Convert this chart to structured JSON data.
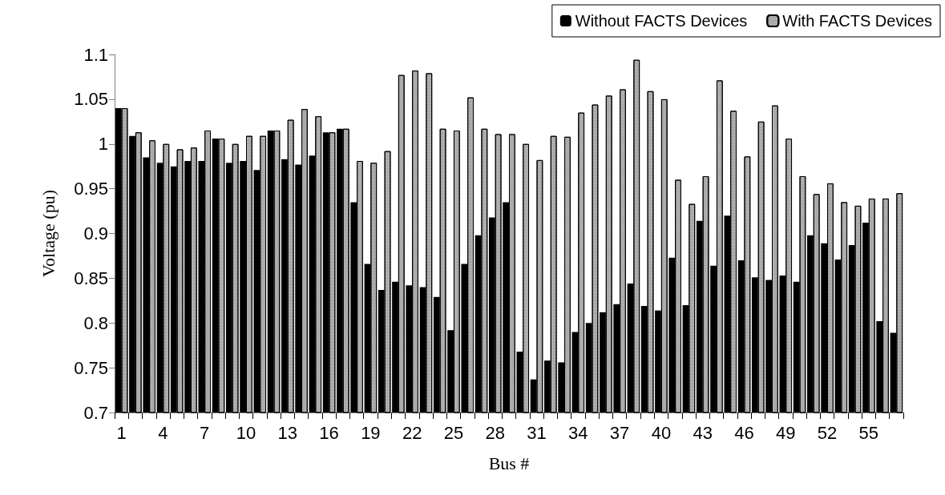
{
  "chart_data": {
    "type": "bar",
    "xlabel": "Bus #",
    "ylabel": "Voltage (pu)",
    "categories": [
      "1",
      null,
      null,
      "4",
      null,
      null,
      "7",
      null,
      null,
      "10",
      null,
      null,
      "13",
      null,
      null,
      "16",
      null,
      null,
      "19",
      null,
      null,
      "22",
      null,
      null,
      "25",
      null,
      null,
      "28",
      null,
      null,
      "31",
      null,
      null,
      "34",
      null,
      null,
      "37",
      null,
      null,
      "40",
      null,
      null,
      "43",
      null,
      null,
      "46",
      null,
      null,
      "49",
      null,
      null,
      "52",
      null,
      null,
      "55",
      null,
      null
    ],
    "series": [
      {
        "name": "Without FACTS Devices",
        "color": "#000000",
        "values": [
          1.04,
          1.009,
          0.985,
          0.979,
          0.975,
          0.981,
          0.981,
          1.006,
          0.979,
          0.981,
          0.971,
          1.015,
          0.983,
          0.977,
          0.987,
          1.013,
          1.017,
          0.935,
          0.866,
          0.837,
          0.846,
          0.842,
          0.84,
          0.829,
          0.792,
          0.866,
          0.898,
          0.918,
          0.935,
          0.768,
          0.737,
          0.758,
          0.756,
          0.79,
          0.8,
          0.812,
          0.821,
          0.844,
          0.819,
          0.814,
          0.873,
          0.82,
          0.914,
          0.864,
          0.92,
          0.87,
          0.851,
          0.848,
          0.853,
          0.846,
          0.898,
          0.889,
          0.871,
          0.887,
          0.912,
          0.802,
          0.789
        ]
      },
      {
        "name": "With FACTS Devices",
        "color": "#a8a8a8",
        "values": [
          1.04,
          1.013,
          1.004,
          1.0,
          0.994,
          0.996,
          1.015,
          1.006,
          1.0,
          1.009,
          1.009,
          1.015,
          1.027,
          1.039,
          1.031,
          1.013,
          1.017,
          0.981,
          0.979,
          0.992,
          1.077,
          1.082,
          1.079,
          1.017,
          1.015,
          1.052,
          1.017,
          1.011,
          1.011,
          1.0,
          0.982,
          1.009,
          1.008,
          1.035,
          1.044,
          1.054,
          1.061,
          1.094,
          1.059,
          1.05,
          0.96,
          0.933,
          0.964,
          1.071,
          1.037,
          0.986,
          1.025,
          1.043,
          1.006,
          0.964,
          0.944,
          0.956,
          0.935,
          0.931,
          0.939,
          0.939,
          0.945
        ]
      }
    ],
    "ylim": [
      0.7,
      1.1
    ],
    "yticks": [
      0.7,
      0.75,
      0.8,
      0.85,
      0.9,
      0.95,
      1,
      1.05,
      1.1
    ],
    "grid": false,
    "legend": "top right"
  }
}
